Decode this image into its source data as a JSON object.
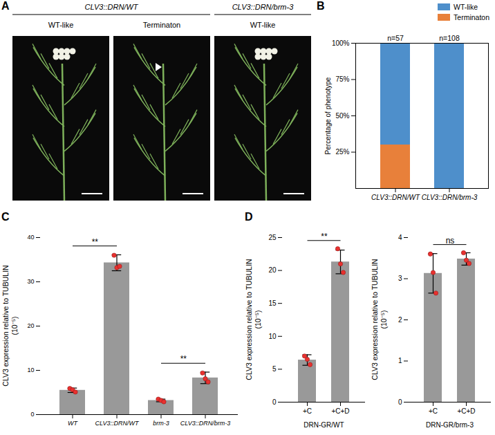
{
  "panel_a": {
    "panel": "A",
    "groups": [
      {
        "label": "CLV3::DRN/WT",
        "images": [
          "WT-like",
          "Terminaton"
        ]
      },
      {
        "label": "CLV3::DRN/brm-3",
        "images": [
          "WT-like"
        ]
      }
    ]
  },
  "chart_data": [
    {
      "panel": "B",
      "type": "bar",
      "stacked": true,
      "categories": [
        "CLV3::DRN/WT",
        "CLV3::DRN/brm-3"
      ],
      "series": [
        {
          "name": "WT-like",
          "color": "#4e8fcb",
          "values": [
            70,
            100
          ]
        },
        {
          "name": "Terminaton",
          "color": "#e8803a",
          "values": [
            30,
            0
          ]
        }
      ],
      "annotations": [
        "n=57",
        "n=108"
      ],
      "y_label": "Percentage of phenotype",
      "ylim": [
        0,
        100
      ],
      "yticks": [
        {
          "value": 25,
          "label": "25%"
        },
        {
          "value": 50,
          "label": "50%"
        },
        {
          "value": 75,
          "label": "75%"
        },
        {
          "value": 100,
          "label": "100%"
        }
      ],
      "legend": "top",
      "grid": false
    },
    {
      "panel": "C",
      "type": "bar",
      "categories": [
        "WT",
        "CLV3::DRN/WT",
        "brm-3",
        "CLV3::DRN/brm-3"
      ],
      "values": [
        5.5,
        34.3,
        3.2,
        8.3
      ],
      "errors": [
        0.5,
        1.8,
        0.3,
        1.3
      ],
      "points": [
        [
          5.9,
          5.6,
          5.1
        ],
        [
          36.0,
          33.2,
          33.5
        ],
        [
          3.5,
          3.2,
          2.9
        ],
        [
          9.4,
          8.1,
          7.4
        ]
      ],
      "color": "#999999",
      "y_label": [
        "CLV3 expression  relative to TUBULIN",
        "(10⁻⁵)"
      ],
      "ylim": [
        0,
        40
      ],
      "yticks": [
        0,
        10,
        20,
        30,
        40
      ],
      "significance": [
        {
          "between": [
            0,
            1
          ],
          "label": "**"
        },
        {
          "between": [
            2,
            3
          ],
          "label": "**"
        }
      ],
      "grid": false
    },
    {
      "panel": "D",
      "type": "bar",
      "categories": [
        "+C",
        "+C+D"
      ],
      "values": [
        6.4,
        21.3
      ],
      "errors": [
        0.8,
        1.8
      ],
      "points": [
        [
          7.0,
          6.5,
          5.7
        ],
        [
          23.3,
          21.0,
          19.7
        ]
      ],
      "color": "#999999",
      "x_label": "DRN-GR/WT",
      "y_label": [
        "CLV3 expression  relative to TUBULIN",
        "(10⁻⁵)"
      ],
      "ylim": [
        0,
        25
      ],
      "yticks": [
        0,
        5,
        10,
        15,
        20,
        25
      ],
      "significance": [
        {
          "between": [
            0,
            1
          ],
          "label": "**"
        }
      ],
      "grid": false
    },
    {
      "type": "bar",
      "categories": [
        "+C",
        "+C+D"
      ],
      "values": [
        3.13,
        3.48
      ],
      "errors": [
        0.48,
        0.15
      ],
      "points": [
        [
          3.6,
          3.15,
          2.65
        ],
        [
          3.63,
          3.45,
          3.37
        ]
      ],
      "color": "#999999",
      "x_label": "DRN-GR/brm-3",
      "y_label": [
        "CLV3 expression  relative to TUBULIN",
        "(10⁻⁵)"
      ],
      "ylim": [
        0,
        4
      ],
      "yticks": [
        0,
        1,
        2,
        3,
        4
      ],
      "significance": [
        {
          "between": [
            0,
            1
          ],
          "label": "ns"
        }
      ],
      "grid": false
    }
  ]
}
